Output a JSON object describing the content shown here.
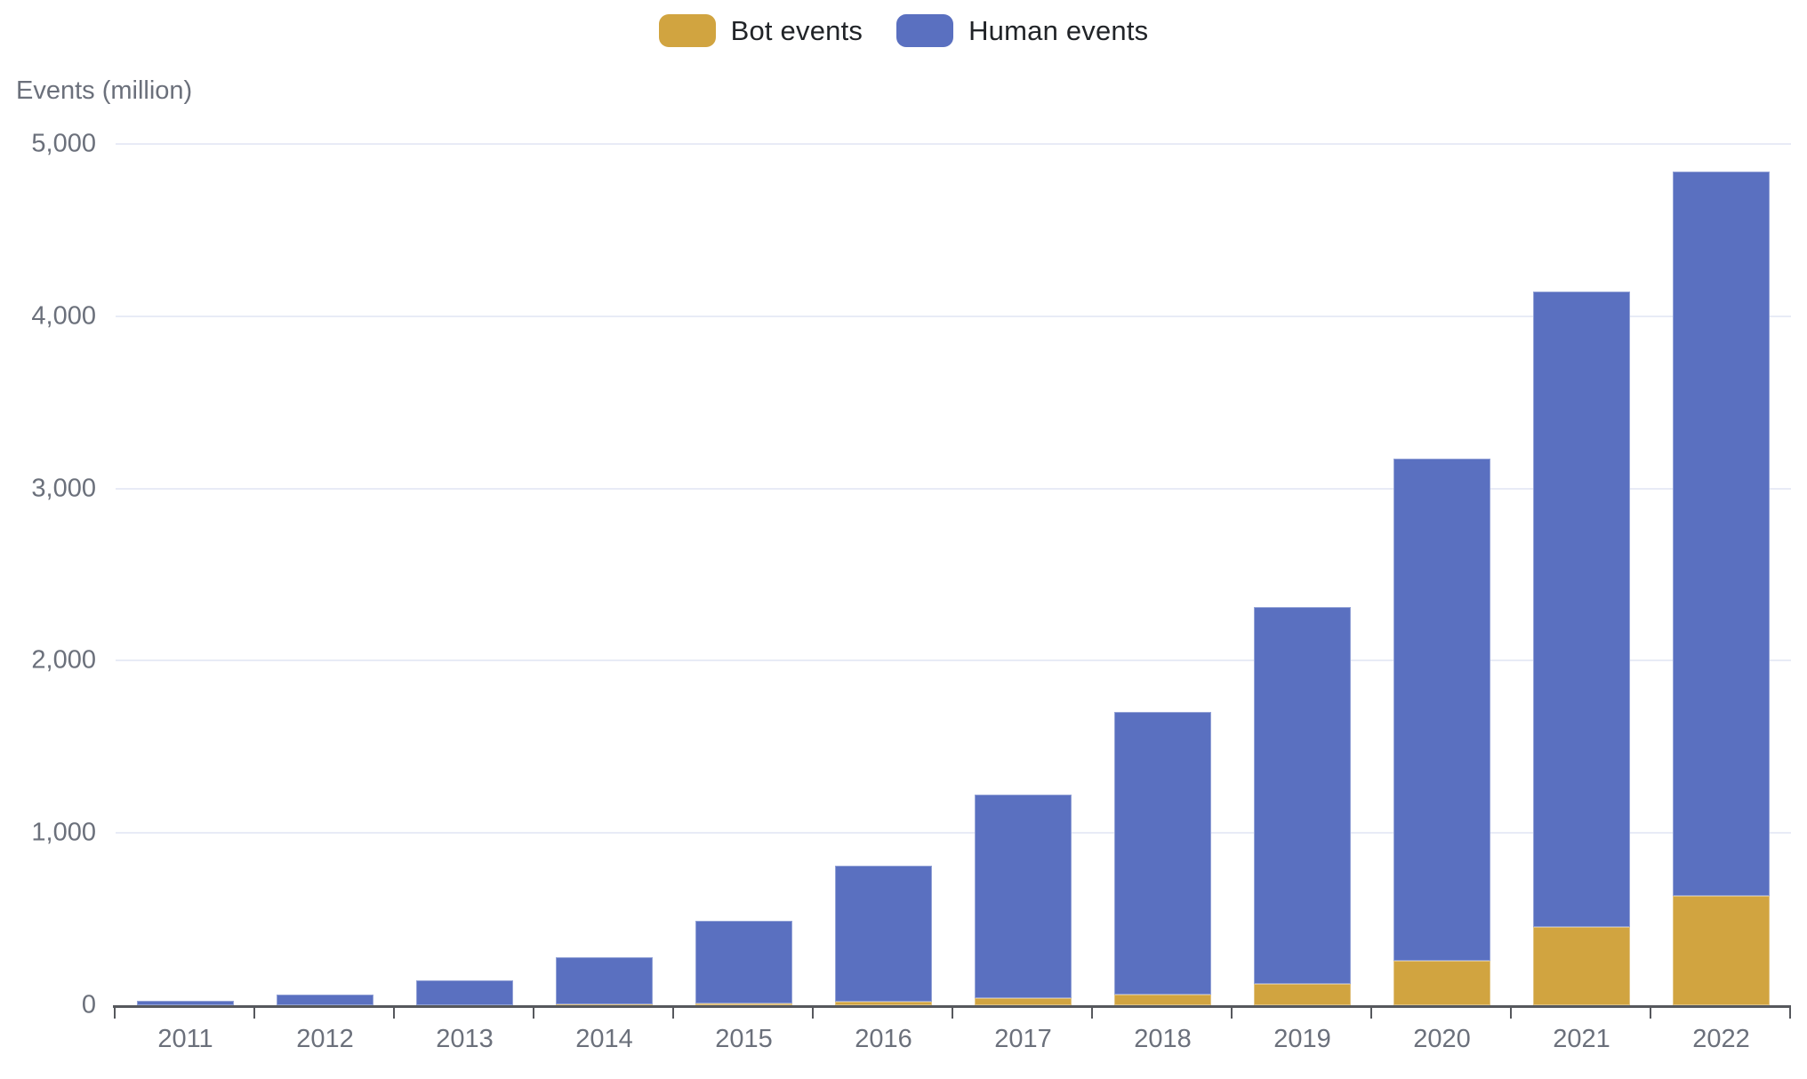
{
  "legend": {
    "items": [
      {
        "label": "Bot events"
      },
      {
        "label": "Human events"
      }
    ]
  },
  "chart_data": {
    "type": "bar",
    "subtype": "stacked-vertical",
    "title": "",
    "ylabel": "Events (million)",
    "xlabel": "",
    "categories": [
      "2011",
      "2012",
      "2013",
      "2014",
      "2015",
      "2016",
      "2017",
      "2018",
      "2019",
      "2020",
      "2021",
      "2022"
    ],
    "series": [
      {
        "name": "Bot events",
        "color": "#D1A440",
        "values": [
          0,
          1,
          2,
          4,
          12,
          20,
          40,
          62,
          125,
          258,
          455,
          635
        ]
      },
      {
        "name": "Human events",
        "color": "#5A70C0",
        "values": [
          25,
          61,
          143,
          274,
          478,
          792,
          1185,
          1640,
          2185,
          2915,
          3690,
          4205
        ]
      }
    ],
    "totals": [
      25,
      62,
      145,
      278,
      490,
      812,
      1225,
      1702,
      2310,
      3173,
      4145,
      4840
    ],
    "ylim": [
      0,
      5000
    ],
    "y_ticks": {
      "values": [
        0,
        1000,
        2000,
        3000,
        4000,
        5000
      ],
      "labels": [
        "0",
        "1,000",
        "2,000",
        "3,000",
        "4,000",
        "5,000"
      ]
    },
    "grid": "horizontal",
    "legend_position": "top-center",
    "colors": {
      "gridline": "#E8EBF6",
      "axis_line": "#56585D",
      "tick_text": "#6B707B",
      "legend_text": "#212428"
    }
  }
}
